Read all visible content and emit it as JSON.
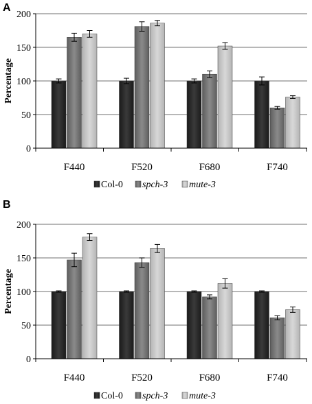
{
  "chart_data": [
    {
      "panel": "A",
      "type": "bar",
      "ylabel": "Percentage",
      "ylim": [
        0,
        200
      ],
      "yticks": [
        0,
        50,
        100,
        150,
        200
      ],
      "categories": [
        "F440",
        "F520",
        "F680",
        "F740"
      ],
      "series": [
        {
          "name": "Col-0",
          "color": "#2b2b2b",
          "values": [
            100,
            100,
            100,
            100
          ],
          "errors": [
            3,
            4,
            3,
            6
          ]
        },
        {
          "name": "spch-3",
          "color": "#767676",
          "values": [
            165,
            181,
            110,
            60
          ],
          "errors": [
            6,
            7,
            5,
            2
          ]
        },
        {
          "name": "mute-3",
          "color": "#c6c6c6",
          "values": [
            170,
            186,
            152,
            76
          ],
          "errors": [
            5,
            4,
            5,
            2
          ]
        }
      ],
      "grid": true,
      "legend_position": "bottom"
    },
    {
      "panel": "B",
      "type": "bar",
      "ylabel": "Percentage",
      "ylim": [
        0,
        200
      ],
      "yticks": [
        0,
        50,
        100,
        150,
        200
      ],
      "categories": [
        "F440",
        "F520",
        "F680",
        "F740"
      ],
      "series": [
        {
          "name": "Col-0",
          "color": "#2b2b2b",
          "values": [
            100,
            100,
            100,
            100
          ],
          "errors": [
            1,
            1,
            1,
            1
          ]
        },
        {
          "name": "spch-3",
          "color": "#767676",
          "values": [
            147,
            143,
            92,
            61
          ],
          "errors": [
            10,
            7,
            3,
            3
          ]
        },
        {
          "name": "mute-3",
          "color": "#c6c6c6",
          "values": [
            181,
            164,
            112,
            73
          ],
          "errors": [
            5,
            6,
            7,
            4
          ]
        }
      ],
      "grid": true,
      "legend_position": "bottom"
    }
  ]
}
